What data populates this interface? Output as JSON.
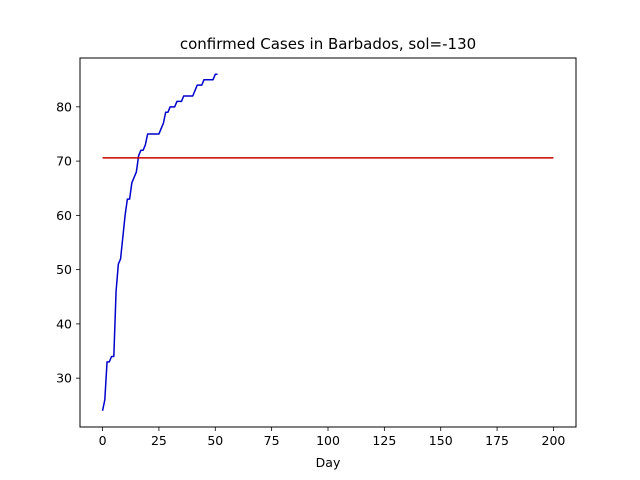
{
  "chart_data": {
    "type": "line",
    "title": "confirmed Cases in Barbados, sol=-130",
    "xlabel": "Day",
    "ylabel": "",
    "xlim": [
      -10,
      210
    ],
    "ylim": [
      21,
      89
    ],
    "xticks": [
      0,
      25,
      50,
      75,
      100,
      125,
      150,
      175,
      200
    ],
    "yticks": [
      30,
      40,
      50,
      60,
      70,
      80
    ],
    "grid": false,
    "series": [
      {
        "color": "#0000cc",
        "x": [
          0,
          1,
          2,
          3,
          4,
          5,
          6,
          7,
          8,
          9,
          10,
          11,
          12,
          13,
          14,
          15,
          16,
          17,
          18,
          19,
          20,
          21,
          22,
          23,
          24,
          25,
          26,
          27,
          28,
          29,
          30,
          31,
          32,
          33,
          34,
          35,
          36,
          37,
          38,
          39,
          40,
          41,
          42,
          43,
          44,
          45,
          46,
          47,
          48,
          49,
          50,
          51
        ],
        "y": [
          24,
          26,
          33,
          33,
          34,
          34,
          46,
          51,
          52,
          56,
          60,
          63,
          63,
          66,
          67,
          68,
          71,
          72,
          72,
          73,
          75,
          75,
          75,
          75,
          75,
          75,
          76,
          77,
          79,
          79,
          80,
          80,
          80,
          81,
          81,
          81,
          82,
          82,
          82,
          82,
          82,
          83,
          84,
          84,
          84,
          85,
          85,
          85,
          85,
          85,
          86,
          86
        ]
      },
      {
        "color": "#cc0000",
        "x": [
          0,
          200
        ],
        "y": [
          70.6,
          70.6
        ]
      }
    ]
  }
}
